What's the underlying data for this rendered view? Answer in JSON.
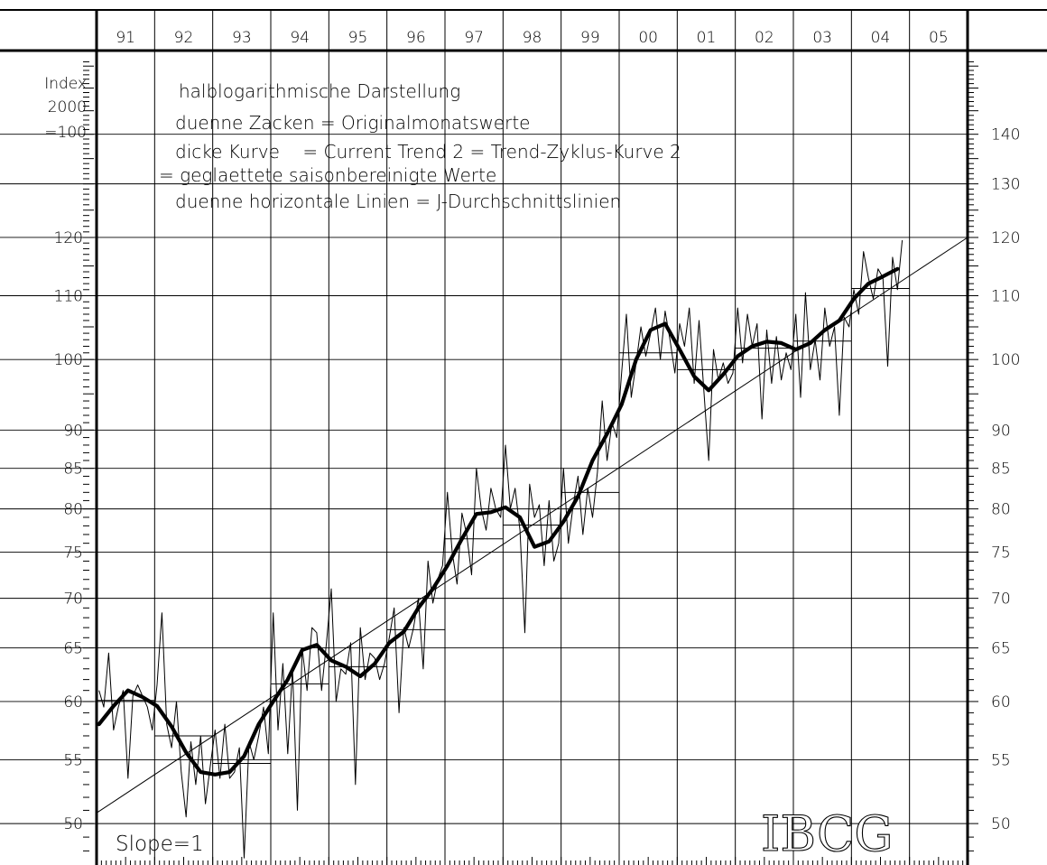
{
  "chart_data": {
    "type": "line",
    "scale": "log",
    "ylim": [
      47,
      158
    ],
    "y_ticks": [
      50,
      55,
      60,
      65,
      70,
      75,
      80,
      85,
      90,
      100,
      110,
      120,
      130,
      140
    ],
    "y_ticks_left": [
      50,
      55,
      60,
      65,
      70,
      75,
      80,
      85,
      90,
      100,
      110,
      120
    ],
    "y_ticks_right": [
      50,
      55,
      60,
      65,
      70,
      75,
      80,
      85,
      90,
      100,
      110,
      120,
      130,
      140
    ],
    "year_labels": [
      "91",
      "92",
      "93",
      "94",
      "95",
      "96",
      "97",
      "98",
      "99",
      "00",
      "01",
      "02",
      "03",
      "04",
      "05"
    ],
    "ylabel": [
      "Index",
      "2000",
      "=100"
    ],
    "annotations": [
      "halblogarithmische Darstellung",
      "duenne Zacken = Originalmonatswerte",
      "dicke Kurve    = Current Trend 2 = Trend-Zyklus-Kurve 2",
      "= geglaettete saisonbereinigte Werte",
      "duenne horizontale Linien = J-Durchschnittslinien"
    ],
    "slope_label": "Slope=1",
    "brand": "IBCG",
    "grid": true,
    "annual_averages": [
      {
        "year": "91",
        "value": 60.1
      },
      {
        "year": "92",
        "value": 57.0
      },
      {
        "year": "93",
        "value": 54.7
      },
      {
        "year": "94",
        "value": 61.6
      },
      {
        "year": "95",
        "value": 63.2
      },
      {
        "year": "96",
        "value": 66.8
      },
      {
        "year": "97",
        "value": 76.5
      },
      {
        "year": "98",
        "value": 78.1
      },
      {
        "year": "99",
        "value": 82.0
      },
      {
        "year": "00",
        "value": 101.0
      },
      {
        "year": "01",
        "value": 98.5
      },
      {
        "year": "02",
        "value": 101.7
      },
      {
        "year": "03",
        "value": 102.8
      },
      {
        "year": "04",
        "value": 111.2
      }
    ],
    "trend_line": {
      "start": [
        "1991-01",
        50.8
      ],
      "end": [
        "2005-12",
        120.0
      ]
    },
    "series": [
      {
        "role": "trend-cycle",
        "points": [
          [
            "1991-01",
            58.0
          ],
          [
            "1991-04",
            59.6
          ],
          [
            "1991-07",
            61.0
          ],
          [
            "1991-10",
            60.4
          ],
          [
            "1992-01",
            59.6
          ],
          [
            "1992-04",
            57.8
          ],
          [
            "1992-07",
            55.6
          ],
          [
            "1992-10",
            54.0
          ],
          [
            "1993-01",
            53.8
          ],
          [
            "1993-04",
            54.0
          ],
          [
            "1993-07",
            55.3
          ],
          [
            "1993-10",
            58.0
          ],
          [
            "1994-01",
            60.0
          ],
          [
            "1994-04",
            62.0
          ],
          [
            "1994-07",
            64.8
          ],
          [
            "1994-10",
            65.3
          ],
          [
            "1995-01",
            63.8
          ],
          [
            "1995-04",
            63.2
          ],
          [
            "1995-07",
            62.3
          ],
          [
            "1995-10",
            63.5
          ],
          [
            "1996-01",
            65.5
          ],
          [
            "1996-04",
            66.6
          ],
          [
            "1996-07",
            69.0
          ],
          [
            "1996-10",
            71.0
          ],
          [
            "1997-01",
            73.5
          ],
          [
            "1997-04",
            76.5
          ],
          [
            "1997-07",
            79.4
          ],
          [
            "1997-10",
            79.6
          ],
          [
            "1998-01",
            80.2
          ],
          [
            "1998-04",
            79.0
          ],
          [
            "1998-07",
            75.6
          ],
          [
            "1998-10",
            76.2
          ],
          [
            "1999-01",
            78.5
          ],
          [
            "1999-04",
            81.5
          ],
          [
            "1999-07",
            86.0
          ],
          [
            "1999-10",
            89.5
          ],
          [
            "2000-01",
            93.5
          ],
          [
            "2000-04",
            100.0
          ],
          [
            "2000-07",
            104.5
          ],
          [
            "2000-10",
            105.5
          ],
          [
            "2001-01",
            101.5
          ],
          [
            "2001-04",
            97.5
          ],
          [
            "2001-07",
            95.5
          ],
          [
            "2001-10",
            97.8
          ],
          [
            "2002-01",
            100.5
          ],
          [
            "2002-04",
            102.0
          ],
          [
            "2002-07",
            102.7
          ],
          [
            "2002-10",
            102.5
          ],
          [
            "2003-01",
            101.5
          ],
          [
            "2003-04",
            102.5
          ],
          [
            "2003-07",
            104.5
          ],
          [
            "2003-10",
            106.0
          ],
          [
            "2004-01",
            109.5
          ],
          [
            "2004-04",
            112.0
          ],
          [
            "2004-07",
            113.2
          ],
          [
            "2004-10",
            114.5
          ]
        ]
      },
      {
        "role": "monthly-original",
        "points": [
          [
            "1991-01",
            61.0
          ],
          [
            "1991-02",
            59.5
          ],
          [
            "1991-03",
            64.5
          ],
          [
            "1991-04",
            57.5
          ],
          [
            "1991-05",
            59.5
          ],
          [
            "1991-06",
            61.0
          ],
          [
            "1991-07",
            53.5
          ],
          [
            "1991-08",
            60.5
          ],
          [
            "1991-09",
            61.5
          ],
          [
            "1991-10",
            60.5
          ],
          [
            "1991-11",
            59.5
          ],
          [
            "1991-12",
            57.5
          ],
          [
            "1992-01",
            61.5
          ],
          [
            "1992-02",
            68.5
          ],
          [
            "1992-03",
            58.0
          ],
          [
            "1992-04",
            56.0
          ],
          [
            "1992-05",
            60.0
          ],
          [
            "1992-06",
            54.0
          ],
          [
            "1992-07",
            50.5
          ],
          [
            "1992-08",
            56.5
          ],
          [
            "1992-09",
            53.0
          ],
          [
            "1992-10",
            57.0
          ],
          [
            "1992-11",
            51.5
          ],
          [
            "1992-12",
            54.5
          ],
          [
            "1993-01",
            57.5
          ],
          [
            "1993-02",
            53.5
          ],
          [
            "1993-03",
            58.0
          ],
          [
            "1993-04",
            53.5
          ],
          [
            "1993-05",
            54.0
          ],
          [
            "1993-06",
            56.0
          ],
          [
            "1993-07",
            47.5
          ],
          [
            "1993-08",
            56.5
          ],
          [
            "1993-09",
            55.0
          ],
          [
            "1993-10",
            57.0
          ],
          [
            "1993-11",
            59.5
          ],
          [
            "1993-12",
            55.5
          ],
          [
            "1994-01",
            68.5
          ],
          [
            "1994-02",
            57.5
          ],
          [
            "1994-03",
            63.5
          ],
          [
            "1994-04",
            55.5
          ],
          [
            "1994-05",
            63.0
          ],
          [
            "1994-06",
            51.0
          ],
          [
            "1994-07",
            65.0
          ],
          [
            "1994-08",
            61.0
          ],
          [
            "1994-09",
            67.0
          ],
          [
            "1994-10",
            66.5
          ],
          [
            "1994-11",
            61.0
          ],
          [
            "1994-12",
            65.5
          ],
          [
            "1995-01",
            71.0
          ],
          [
            "1995-02",
            60.0
          ],
          [
            "1995-03",
            63.0
          ],
          [
            "1995-04",
            62.5
          ],
          [
            "1995-05",
            65.5
          ],
          [
            "1995-06",
            53.0
          ],
          [
            "1995-07",
            67.0
          ],
          [
            "1995-08",
            62.0
          ],
          [
            "1995-09",
            64.5
          ],
          [
            "1995-10",
            64.0
          ],
          [
            "1995-11",
            62.0
          ],
          [
            "1995-12",
            63.5
          ],
          [
            "1996-01",
            66.0
          ],
          [
            "1996-02",
            69.0
          ],
          [
            "1996-03",
            59.0
          ],
          [
            "1996-04",
            67.0
          ],
          [
            "1996-05",
            65.0
          ],
          [
            "1996-06",
            67.0
          ],
          [
            "1996-07",
            70.0
          ],
          [
            "1996-08",
            63.0
          ],
          [
            "1996-09",
            74.0
          ],
          [
            "1996-10",
            69.5
          ],
          [
            "1996-11",
            72.0
          ],
          [
            "1996-12",
            73.5
          ],
          [
            "1997-01",
            82.0
          ],
          [
            "1997-02",
            75.0
          ],
          [
            "1997-03",
            71.5
          ],
          [
            "1997-04",
            79.5
          ],
          [
            "1997-05",
            77.0
          ],
          [
            "1997-06",
            72.5
          ],
          [
            "1997-07",
            85.0
          ],
          [
            "1997-08",
            80.0
          ],
          [
            "1997-09",
            77.5
          ],
          [
            "1997-10",
            82.5
          ],
          [
            "1997-11",
            80.0
          ],
          [
            "1997-12",
            79.0
          ],
          [
            "1998-01",
            88.0
          ],
          [
            "1998-02",
            80.0
          ],
          [
            "1998-03",
            82.5
          ],
          [
            "1998-04",
            77.5
          ],
          [
            "1998-05",
            66.5
          ],
          [
            "1998-06",
            83.0
          ],
          [
            "1998-07",
            79.0
          ],
          [
            "1998-08",
            80.5
          ],
          [
            "1998-09",
            73.5
          ],
          [
            "1998-10",
            81.0
          ],
          [
            "1998-11",
            74.0
          ],
          [
            "1998-12",
            76.0
          ],
          [
            "1999-01",
            85.0
          ],
          [
            "1999-02",
            76.0
          ],
          [
            "1999-03",
            80.5
          ],
          [
            "1999-04",
            84.0
          ],
          [
            "1999-05",
            77.0
          ],
          [
            "1999-06",
            82.5
          ],
          [
            "1999-07",
            79.0
          ],
          [
            "1999-08",
            84.5
          ],
          [
            "1999-09",
            94.0
          ],
          [
            "1999-10",
            86.0
          ],
          [
            "1999-11",
            91.0
          ],
          [
            "1999-12",
            89.0
          ],
          [
            "2000-01",
            98.0
          ],
          [
            "2000-02",
            107.0
          ],
          [
            "2000-03",
            94.5
          ],
          [
            "2000-04",
            99.5
          ],
          [
            "2000-05",
            105.0
          ],
          [
            "2000-06",
            100.5
          ],
          [
            "2000-07",
            104.0
          ],
          [
            "2000-08",
            108.0
          ],
          [
            "2000-09",
            100.0
          ],
          [
            "2000-10",
            107.5
          ],
          [
            "2000-11",
            103.0
          ],
          [
            "2000-12",
            98.0
          ],
          [
            "2001-01",
            105.5
          ],
          [
            "2001-02",
            102.0
          ],
          [
            "2001-03",
            108.0
          ],
          [
            "2001-04",
            96.5
          ],
          [
            "2001-05",
            106.0
          ],
          [
            "2001-06",
            95.5
          ],
          [
            "2001-07",
            86.0
          ],
          [
            "2001-08",
            101.5
          ],
          [
            "2001-09",
            97.0
          ],
          [
            "2001-10",
            99.5
          ],
          [
            "2001-11",
            96.5
          ],
          [
            "2001-12",
            98.0
          ],
          [
            "2002-01",
            108.0
          ],
          [
            "2002-02",
            99.5
          ],
          [
            "2002-03",
            107.0
          ],
          [
            "2002-04",
            102.0
          ],
          [
            "2002-05",
            105.5
          ],
          [
            "2002-06",
            91.5
          ],
          [
            "2002-07",
            104.5
          ],
          [
            "2002-08",
            96.5
          ],
          [
            "2002-09",
            103.5
          ],
          [
            "2002-10",
            97.0
          ],
          [
            "2002-11",
            101.0
          ],
          [
            "2002-12",
            98.5
          ],
          [
            "2003-01",
            107.0
          ],
          [
            "2003-02",
            94.5
          ],
          [
            "2003-03",
            110.5
          ],
          [
            "2003-04",
            98.5
          ],
          [
            "2003-05",
            103.0
          ],
          [
            "2003-06",
            97.0
          ],
          [
            "2003-07",
            108.0
          ],
          [
            "2003-08",
            102.0
          ],
          [
            "2003-09",
            105.0
          ],
          [
            "2003-10",
            92.0
          ],
          [
            "2003-11",
            106.5
          ],
          [
            "2003-12",
            105.0
          ],
          [
            "2004-01",
            111.0
          ],
          [
            "2004-02",
            107.0
          ],
          [
            "2004-03",
            117.5
          ],
          [
            "2004-04",
            113.0
          ],
          [
            "2004-05",
            109.5
          ],
          [
            "2004-06",
            114.5
          ],
          [
            "2004-07",
            113.0
          ],
          [
            "2004-08",
            99.0
          ],
          [
            "2004-09",
            116.5
          ],
          [
            "2004-10",
            111.0
          ],
          [
            "2004-11",
            119.5
          ]
        ]
      }
    ]
  }
}
